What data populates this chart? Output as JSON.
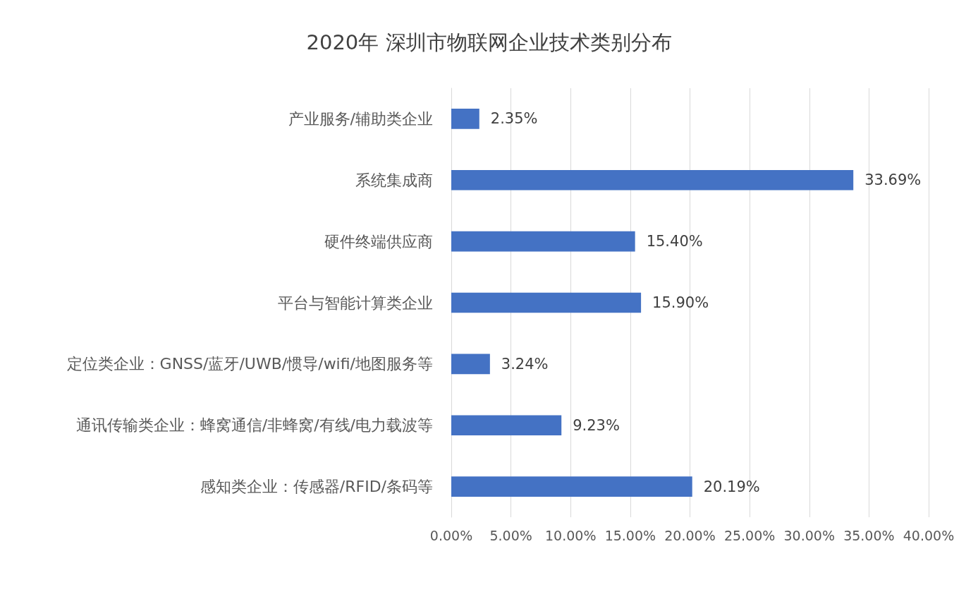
{
  "chart_data": {
    "type": "bar",
    "orientation": "horizontal",
    "title": "2020年 深圳市物联网企业技术类别分布",
    "categories": [
      "产业服务/辅助类企业",
      "系统集成商",
      "硬件终端供应商",
      "平台与智能计算类企业",
      "定位类企业：GNSS/蓝牙/UWB/惯导/wifi/地图服务等",
      "通讯传输类企业：蜂窝通信/非蜂窝/有线/电力载波等",
      "感知类企业：传感器/RFID/条码等"
    ],
    "values": [
      2.35,
      33.69,
      15.4,
      15.9,
      3.24,
      9.23,
      20.19
    ],
    "value_labels": [
      "2.35%",
      "33.69%",
      "15.40%",
      "15.90%",
      "3.24%",
      "9.23%",
      "20.19%"
    ],
    "color": "#4472c4",
    "xlim": [
      0,
      40
    ],
    "xticks": [
      {
        "value": 0,
        "label": "0.00%"
      },
      {
        "value": 5,
        "label": "5.00%"
      },
      {
        "value": 10,
        "label": "10.00%"
      },
      {
        "value": 15,
        "label": "15.00%"
      },
      {
        "value": 20,
        "label": "20.00%"
      },
      {
        "value": 25,
        "label": "25.00%"
      },
      {
        "value": 30,
        "label": "30.00%"
      },
      {
        "value": 35,
        "label": "35.00%"
      },
      {
        "value": 40,
        "label": "40.00%"
      }
    ],
    "grid": "x"
  }
}
